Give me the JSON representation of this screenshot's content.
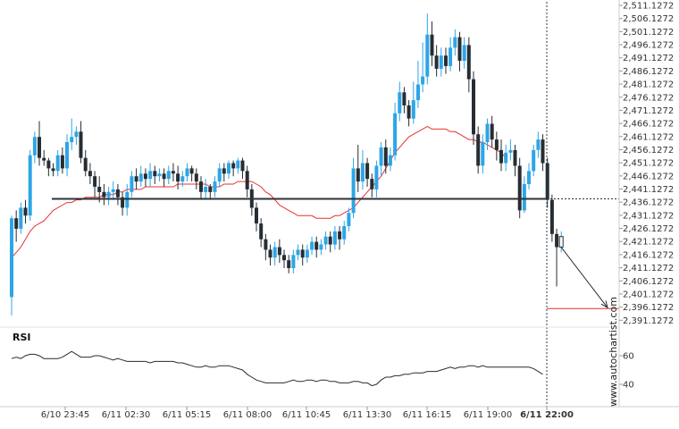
{
  "chart_data": {
    "type": "candlestick",
    "y_tick_labels": [
      "2,511.1272",
      "2,506.1272",
      "2,501.1272",
      "2,496.1272",
      "2,491.1272",
      "2,486.1272",
      "2,481.1272",
      "2,476.1272",
      "2,471.1272",
      "2,466.1272",
      "2,461.1272",
      "2,456.1272",
      "2,451.1272",
      "2,446.1272",
      "2,441.1272",
      "2,436.1272",
      "2,431.1272",
      "2,426.1272",
      "2,421.1272",
      "2,416.1272",
      "2,411.1272",
      "2,406.1272",
      "2,401.1272",
      "2,396.1272",
      "2,391.1272"
    ],
    "ylim": [
      2388.5,
      2511.1272
    ],
    "x_tick_labels": [
      "6/10 23:45",
      "6/11 02:30",
      "6/11 05:15",
      "6/11 08:00",
      "6/11 10:45",
      "6/11 13:30",
      "6/11 16:15",
      "6/11 19:00",
      "6/11 22:00"
    ],
    "support_level": 2437.4,
    "target_level": 2395.6,
    "moving_average": [
      2415,
      2417,
      2419,
      2422,
      2425,
      2427,
      2428,
      2429,
      2431,
      2433,
      2434,
      2435,
      2436,
      2436,
      2437,
      2437,
      2438,
      2438,
      2438,
      2438,
      2439,
      2439,
      2439,
      2440,
      2440,
      2441,
      2441,
      2441,
      2441,
      2442,
      2442,
      2442,
      2442,
      2442,
      2442,
      2442,
      2443,
      2443,
      2443,
      2443,
      2443,
      2443,
      2443,
      2442,
      2442,
      2442,
      2443,
      2443,
      2443,
      2444,
      2444,
      2444,
      2444,
      2443,
      2442,
      2440,
      2439,
      2437,
      2435,
      2434,
      2433,
      2432,
      2431,
      2431,
      2431,
      2431,
      2430,
      2430,
      2430,
      2430,
      2431,
      2431,
      2432,
      2433,
      2434,
      2436,
      2438,
      2440,
      2442,
      2444,
      2446,
      2449,
      2452,
      2455,
      2457,
      2459,
      2461,
      2462,
      2463,
      2464,
      2465,
      2464,
      2464,
      2464,
      2464,
      2463,
      2463,
      2462,
      2461,
      2460,
      2460,
      2459,
      2459,
      2458,
      2457,
      2456,
      2455,
      2453
    ],
    "candles": [
      [
        2400,
        2430,
        2393,
        2431
      ],
      [
        2430,
        2426,
        2421,
        2433
      ],
      [
        2426,
        2434,
        2424,
        2436
      ],
      [
        2434,
        2431,
        2428,
        2437
      ],
      [
        2431,
        2454,
        2429,
        2456
      ],
      [
        2454,
        2461,
        2451,
        2463
      ],
      [
        2461,
        2453,
        2450,
        2467
      ],
      [
        2453,
        2452,
        2450,
        2456
      ],
      [
        2452,
        2449,
        2446,
        2453
      ],
      [
        2449,
        2448,
        2446,
        2451
      ],
      [
        2448,
        2454,
        2446,
        2456
      ],
      [
        2454,
        2449,
        2447,
        2457
      ],
      [
        2449,
        2459,
        2446,
        2462
      ],
      [
        2459,
        2461,
        2456,
        2468
      ],
      [
        2461,
        2463,
        2458,
        2465
      ],
      [
        2463,
        2453,
        2451,
        2467
      ],
      [
        2453,
        2448,
        2446,
        2456
      ],
      [
        2448,
        2446,
        2443,
        2451
      ],
      [
        2446,
        2442,
        2438,
        2448
      ],
      [
        2442,
        2440,
        2436,
        2446
      ],
      [
        2440,
        2438,
        2435,
        2443
      ],
      [
        2438,
        2440,
        2435,
        2442
      ],
      [
        2440,
        2441,
        2437,
        2444
      ],
      [
        2441,
        2438,
        2435,
        2443
      ],
      [
        2438,
        2434,
        2431,
        2440
      ],
      [
        2434,
        2440,
        2431,
        2443
      ],
      [
        2440,
        2446,
        2438,
        2448
      ],
      [
        2446,
        2444,
        2441,
        2449
      ],
      [
        2444,
        2447,
        2442,
        2450
      ],
      [
        2447,
        2445,
        2442,
        2449
      ],
      [
        2445,
        2448,
        2442,
        2451
      ],
      [
        2448,
        2446,
        2443,
        2450
      ],
      [
        2446,
        2447,
        2444,
        2449
      ],
      [
        2447,
        2445,
        2442,
        2449
      ],
      [
        2445,
        2448,
        2443,
        2450
      ],
      [
        2448,
        2447,
        2444,
        2451
      ],
      [
        2447,
        2444,
        2441,
        2450
      ],
      [
        2444,
        2446,
        2442,
        2448
      ],
      [
        2446,
        2449,
        2444,
        2451
      ],
      [
        2449,
        2447,
        2444,
        2450
      ],
      [
        2447,
        2444,
        2441,
        2449
      ],
      [
        2444,
        2440,
        2437,
        2446
      ],
      [
        2440,
        2442,
        2437,
        2445
      ],
      [
        2442,
        2440,
        2437,
        2443
      ],
      [
        2440,
        2444,
        2438,
        2446
      ],
      [
        2444,
        2449,
        2442,
        2451
      ],
      [
        2449,
        2447,
        2444,
        2451
      ],
      [
        2447,
        2451,
        2445,
        2452
      ],
      [
        2451,
        2449,
        2446,
        2452
      ],
      [
        2449,
        2452,
        2447,
        2453
      ],
      [
        2452,
        2448,
        2445,
        2453
      ],
      [
        2448,
        2441,
        2438,
        2450
      ],
      [
        2441,
        2434,
        2431,
        2443
      ],
      [
        2434,
        2428,
        2425,
        2436
      ],
      [
        2428,
        2422,
        2419,
        2430
      ],
      [
        2422,
        2418,
        2414,
        2424
      ],
      [
        2418,
        2415,
        2412,
        2420
      ],
      [
        2415,
        2419,
        2412,
        2421
      ],
      [
        2419,
        2416,
        2413,
        2422
      ],
      [
        2416,
        2414,
        2411,
        2418
      ],
      [
        2414,
        2411,
        2409,
        2416
      ],
      [
        2411,
        2416,
        2409,
        2418
      ],
      [
        2416,
        2418,
        2414,
        2420
      ],
      [
        2418,
        2415,
        2412,
        2420
      ],
      [
        2415,
        2418,
        2413,
        2420
      ],
      [
        2418,
        2421,
        2416,
        2423
      ],
      [
        2421,
        2418,
        2415,
        2423
      ],
      [
        2418,
        2420,
        2416,
        2422
      ],
      [
        2420,
        2423,
        2418,
        2425
      ],
      [
        2423,
        2420,
        2417,
        2425
      ],
      [
        2420,
        2425,
        2418,
        2427
      ],
      [
        2425,
        2422,
        2418,
        2427
      ],
      [
        2422,
        2427,
        2420,
        2429
      ],
      [
        2427,
        2432,
        2425,
        2434
      ],
      [
        2432,
        2449,
        2430,
        2453
      ],
      [
        2449,
        2444,
        2440,
        2458
      ],
      [
        2444,
        2451,
        2441,
        2456
      ],
      [
        2451,
        2445,
        2442,
        2453
      ],
      [
        2445,
        2441,
        2438,
        2447
      ],
      [
        2441,
        2450,
        2438,
        2452
      ],
      [
        2450,
        2457,
        2446,
        2459
      ],
      [
        2457,
        2450,
        2447,
        2460
      ],
      [
        2450,
        2454,
        2448,
        2457
      ],
      [
        2454,
        2470,
        2452,
        2474
      ],
      [
        2470,
        2478,
        2467,
        2482
      ],
      [
        2478,
        2473,
        2470,
        2480
      ],
      [
        2473,
        2468,
        2465,
        2475
      ],
      [
        2468,
        2475,
        2466,
        2482
      ],
      [
        2475,
        2481,
        2472,
        2490
      ],
      [
        2481,
        2484,
        2478,
        2497
      ],
      [
        2484,
        2500,
        2481,
        2508
      ],
      [
        2500,
        2492,
        2488,
        2505
      ],
      [
        2492,
        2487,
        2484,
        2496
      ],
      [
        2487,
        2492,
        2484,
        2495
      ],
      [
        2492,
        2488,
        2485,
        2495
      ],
      [
        2488,
        2495,
        2486,
        2499
      ],
      [
        2495,
        2499,
        2492,
        2502
      ],
      [
        2499,
        2490,
        2486,
        2501
      ],
      [
        2490,
        2496,
        2487,
        2499
      ],
      [
        2496,
        2483,
        2478,
        2499
      ],
      [
        2483,
        2462,
        2458,
        2486
      ],
      [
        2462,
        2450,
        2447,
        2465
      ],
      [
        2450,
        2459,
        2447,
        2462
      ],
      [
        2459,
        2466,
        2456,
        2468
      ],
      [
        2466,
        2460,
        2457,
        2469
      ],
      [
        2460,
        2456,
        2452,
        2463
      ],
      [
        2456,
        2451,
        2448,
        2460
      ],
      [
        2451,
        2455,
        2448,
        2458
      ],
      [
        2455,
        2456,
        2452,
        2460
      ],
      [
        2456,
        2450,
        2446,
        2458
      ],
      [
        2450,
        2433,
        2430,
        2453
      ],
      [
        2433,
        2443,
        2432,
        2446
      ],
      [
        2443,
        2448,
        2441,
        2451
      ],
      [
        2448,
        2456,
        2446,
        2458
      ],
      [
        2456,
        2460,
        2453,
        2463
      ],
      [
        2460,
        2451,
        2448,
        2462
      ],
      [
        2451,
        2437,
        2434,
        2453
      ],
      [
        2437,
        2424,
        2421,
        2439
      ],
      [
        2424,
        2419,
        2404,
        2426
      ],
      [
        2419,
        2423,
        2417,
        2425
      ]
    ],
    "rsi": {
      "label": "RSI",
      "tick_labels": [
        "60",
        "40"
      ],
      "ylim": [
        30,
        70
      ],
      "values": [
        58,
        59,
        58,
        60,
        61,
        61,
        60,
        58,
        58,
        58,
        58,
        59,
        61,
        63,
        61,
        59,
        59,
        59,
        60,
        60,
        59,
        58,
        57,
        58,
        57,
        56,
        56,
        56,
        56,
        56,
        55,
        56,
        56,
        56,
        56,
        56,
        55,
        55,
        54,
        53,
        52,
        52,
        53,
        52,
        52,
        53,
        53,
        53,
        52,
        51,
        50,
        47,
        45,
        43,
        42,
        41,
        41,
        41,
        41,
        41,
        42,
        43,
        42,
        42,
        43,
        43,
        42,
        43,
        43,
        42,
        42,
        41,
        41,
        41,
        42,
        42,
        41,
        41,
        39,
        40,
        43,
        45,
        45,
        46,
        46,
        47,
        47,
        48,
        48,
        48,
        49,
        49,
        49,
        50,
        51,
        52,
        51,
        52,
        52,
        53,
        53,
        52,
        53,
        52,
        52,
        52,
        52,
        52,
        52,
        52,
        52,
        52,
        52,
        51,
        49,
        47
      ]
    }
  },
  "credit": "www.autochartist.com"
}
